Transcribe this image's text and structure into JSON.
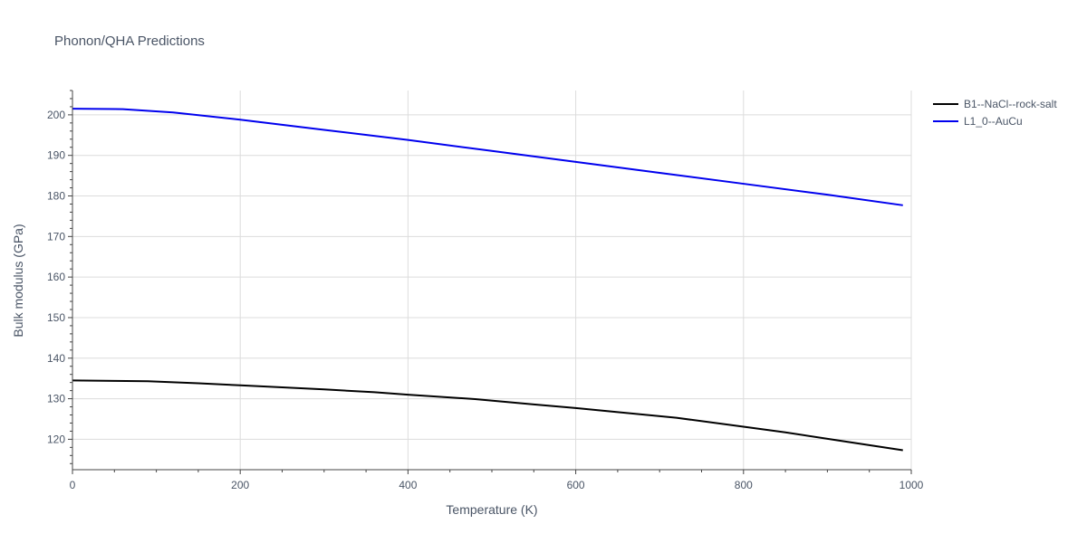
{
  "chart_data": {
    "type": "line",
    "title": "Phonon/QHA Predictions",
    "xlabel": "Temperature (K)",
    "ylabel": "Bulk modulus (GPa)",
    "xlim": [
      0,
      1000
    ],
    "ylim": [
      112.5,
      206
    ],
    "xticks": [
      0,
      200,
      400,
      600,
      800,
      1000
    ],
    "yticks": [
      120,
      130,
      140,
      150,
      160,
      170,
      180,
      190,
      200
    ],
    "grid": true,
    "legend_position": "top-right",
    "series": [
      {
        "name": "B1--NaCl--rock-salt",
        "color": "#000000",
        "x": [
          0,
          50,
          90,
          150,
          200,
          250,
          300,
          360,
          400,
          480,
          550,
          600,
          650,
          720,
          800,
          850,
          910,
          990
        ],
        "y": [
          134.5,
          134.4,
          134.3,
          133.8,
          133.3,
          132.8,
          132.3,
          131.6,
          131.0,
          129.9,
          128.6,
          127.7,
          126.7,
          125.3,
          123.1,
          121.7,
          119.8,
          117.3
        ]
      },
      {
        "name": "L1_0--AuCu",
        "color": "#0000ee",
        "x": [
          0,
          60,
          120,
          200,
          300,
          400,
          500,
          600,
          700,
          800,
          900,
          990
        ],
        "y": [
          201.5,
          201.4,
          200.6,
          198.8,
          196.3,
          193.8,
          191.1,
          188.4,
          185.7,
          183.0,
          180.3,
          177.7
        ]
      }
    ]
  }
}
